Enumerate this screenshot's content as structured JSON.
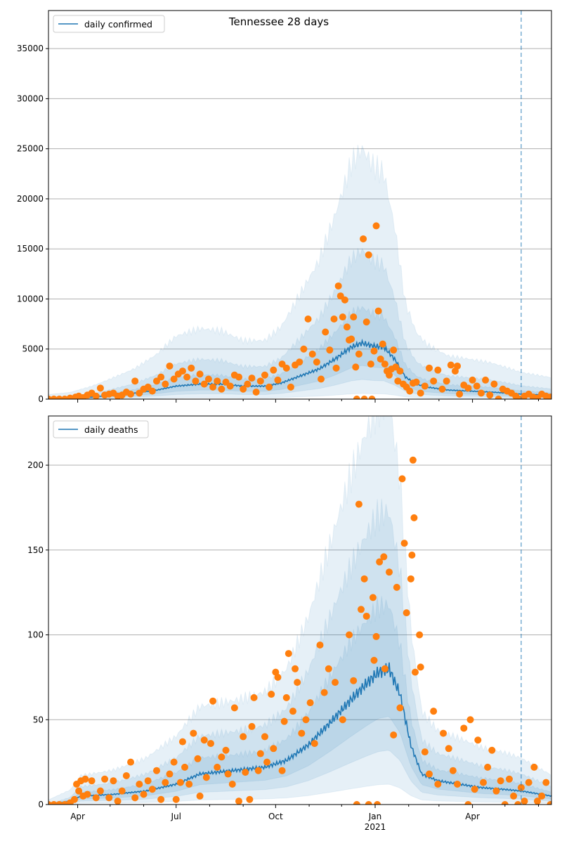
{
  "chart_data": [
    {
      "type": "line",
      "title": "Tennessee 28 days",
      "legend": {
        "label": "daily confirmed",
        "placement": "top-left"
      },
      "x_unit": "days since 2020-03-05",
      "xlim": [
        0,
        465
      ],
      "ylim": [
        0,
        38800
      ],
      "yticks": [
        0,
        5000,
        10000,
        15000,
        20000,
        25000,
        30000,
        35000
      ],
      "ytick_labels": [
        "0",
        "5000",
        "10000",
        "15000",
        "20000",
        "25000",
        "30000",
        "35000"
      ],
      "grid": "horizontal",
      "forecast_start_day": 437,
      "mean": [
        [
          0,
          0
        ],
        [
          20,
          50
        ],
        [
          40,
          200
        ],
        [
          60,
          400
        ],
        [
          80,
          600
        ],
        [
          100,
          900
        ],
        [
          118,
          1300
        ],
        [
          140,
          1500
        ],
        [
          160,
          1500
        ],
        [
          180,
          1300
        ],
        [
          200,
          1300
        ],
        [
          215,
          1600
        ],
        [
          230,
          2200
        ],
        [
          250,
          3000
        ],
        [
          265,
          4000
        ],
        [
          280,
          5200
        ],
        [
          290,
          5600
        ],
        [
          300,
          5300
        ],
        [
          310,
          5200
        ],
        [
          320,
          4000
        ],
        [
          330,
          2200
        ],
        [
          340,
          1500
        ],
        [
          350,
          1200
        ],
        [
          370,
          900
        ],
        [
          390,
          800
        ],
        [
          410,
          700
        ],
        [
          437,
          500
        ],
        [
          465,
          400
        ]
      ],
      "band_multipliers": {
        "outer": [
          0.1,
          4.3
        ],
        "middle": [
          0.35,
          2.6
        ],
        "inner": [
          0.6,
          1.6
        ]
      },
      "observed": [
        [
          0,
          0
        ],
        [
          5,
          0
        ],
        [
          10,
          0
        ],
        [
          15,
          0
        ],
        [
          20,
          100
        ],
        [
          25,
          200
        ],
        [
          28,
          300
        ],
        [
          32,
          150
        ],
        [
          36,
          400
        ],
        [
          40,
          600
        ],
        [
          44,
          300
        ],
        [
          48,
          1100
        ],
        [
          52,
          400
        ],
        [
          56,
          500
        ],
        [
          60,
          600
        ],
        [
          64,
          300
        ],
        [
          68,
          400
        ],
        [
          72,
          700
        ],
        [
          76,
          500
        ],
        [
          80,
          1800
        ],
        [
          84,
          600
        ],
        [
          88,
          1000
        ],
        [
          92,
          1200
        ],
        [
          96,
          800
        ],
        [
          100,
          1800
        ],
        [
          104,
          2200
        ],
        [
          108,
          1500
        ],
        [
          112,
          3300
        ],
        [
          116,
          2000
        ],
        [
          120,
          2500
        ],
        [
          124,
          2800
        ],
        [
          128,
          2200
        ],
        [
          132,
          3100
        ],
        [
          136,
          1800
        ],
        [
          140,
          2500
        ],
        [
          144,
          1500
        ],
        [
          148,
          2000
        ],
        [
          152,
          1200
        ],
        [
          156,
          1800
        ],
        [
          160,
          1000
        ],
        [
          164,
          1700
        ],
        [
          168,
          1300
        ],
        [
          172,
          2400
        ],
        [
          176,
          2200
        ],
        [
          180,
          1000
        ],
        [
          184,
          1500
        ],
        [
          188,
          2100
        ],
        [
          192,
          700
        ],
        [
          196,
          1800
        ],
        [
          200,
          2400
        ],
        [
          204,
          1200
        ],
        [
          208,
          2900
        ],
        [
          212,
          1900
        ],
        [
          216,
          3500
        ],
        [
          220,
          3100
        ],
        [
          224,
          1200
        ],
        [
          228,
          3400
        ],
        [
          232,
          3700
        ],
        [
          236,
          5000
        ],
        [
          240,
          8000
        ],
        [
          244,
          4500
        ],
        [
          248,
          3700
        ],
        [
          252,
          2000
        ],
        [
          256,
          6700
        ],
        [
          260,
          4900
        ],
        [
          264,
          8000
        ],
        [
          266,
          3100
        ],
        [
          268,
          11300
        ],
        [
          270,
          10300
        ],
        [
          272,
          8200
        ],
        [
          274,
          9900
        ],
        [
          276,
          7200
        ],
        [
          278,
          5900
        ],
        [
          280,
          6000
        ],
        [
          282,
          8200
        ],
        [
          284,
          3200
        ],
        [
          285,
          0
        ],
        [
          287,
          4500
        ],
        [
          291,
          16000
        ],
        [
          292,
          0
        ],
        [
          294,
          7700
        ],
        [
          296,
          14400
        ],
        [
          298,
          3500
        ],
        [
          299,
          0
        ],
        [
          301,
          4800
        ],
        [
          303,
          17300
        ],
        [
          305,
          8800
        ],
        [
          307,
          4000
        ],
        [
          309,
          5500
        ],
        [
          311,
          3500
        ],
        [
          313,
          2800
        ],
        [
          315,
          2400
        ],
        [
          317,
          3000
        ],
        [
          319,
          4900
        ],
        [
          321,
          3200
        ],
        [
          323,
          1800
        ],
        [
          325,
          2800
        ],
        [
          328,
          1500
        ],
        [
          331,
          1200
        ],
        [
          334,
          800
        ],
        [
          337,
          1600
        ],
        [
          340,
          1700
        ],
        [
          344,
          600
        ],
        [
          348,
          1300
        ],
        [
          352,
          3100
        ],
        [
          356,
          1800
        ],
        [
          360,
          2900
        ],
        [
          364,
          1000
        ],
        [
          368,
          1800
        ],
        [
          372,
          3400
        ],
        [
          376,
          2800
        ],
        [
          378,
          3300
        ],
        [
          380,
          500
        ],
        [
          384,
          1400
        ],
        [
          388,
          1100
        ],
        [
          392,
          1900
        ],
        [
          396,
          1300
        ],
        [
          400,
          600
        ],
        [
          404,
          1900
        ],
        [
          408,
          400
        ],
        [
          412,
          1500
        ],
        [
          416,
          0
        ],
        [
          420,
          1000
        ],
        [
          424,
          800
        ],
        [
          428,
          600
        ],
        [
          432,
          300
        ],
        [
          436,
          0
        ],
        [
          440,
          300
        ],
        [
          444,
          500
        ],
        [
          448,
          200
        ],
        [
          452,
          100
        ],
        [
          456,
          500
        ],
        [
          460,
          300
        ],
        [
          464,
          200
        ]
      ]
    },
    {
      "type": "line",
      "legend": {
        "label": "daily deaths",
        "placement": "top-left"
      },
      "x_unit": "days since 2020-03-05",
      "xlim": [
        0,
        465
      ],
      "ylim": [
        0,
        229
      ],
      "yticks": [
        0,
        50,
        100,
        150,
        200
      ],
      "ytick_labels": [
        "0",
        "50",
        "100",
        "150",
        "200"
      ],
      "xtick_days": [
        27,
        118,
        210,
        302,
        392
      ],
      "xtick_labels": [
        "Apr",
        "Jul",
        "Oct",
        "Jan\n2021",
        "Apr"
      ],
      "xtick_year_label": "2021",
      "minor_tick_days": [
        57,
        88,
        149,
        180,
        241,
        271,
        333,
        361,
        422,
        453
      ],
      "grid": "horizontal",
      "forecast_start_day": 437,
      "mean": [
        [
          0,
          0
        ],
        [
          20,
          2
        ],
        [
          30,
          5
        ],
        [
          60,
          6
        ],
        [
          90,
          8
        ],
        [
          118,
          12
        ],
        [
          140,
          18
        ],
        [
          170,
          20
        ],
        [
          200,
          22
        ],
        [
          220,
          26
        ],
        [
          240,
          35
        ],
        [
          260,
          48
        ],
        [
          280,
          62
        ],
        [
          295,
          72
        ],
        [
          305,
          78
        ],
        [
          315,
          80
        ],
        [
          325,
          65
        ],
        [
          335,
          35
        ],
        [
          345,
          18
        ],
        [
          360,
          14
        ],
        [
          380,
          12
        ],
        [
          400,
          10
        ],
        [
          420,
          9
        ],
        [
          437,
          8
        ],
        [
          465,
          5
        ]
      ],
      "band_multipliers": {
        "outer": [
          0.15,
          3.0
        ],
        "middle": [
          0.4,
          2.2
        ],
        "inner": [
          0.65,
          1.5
        ]
      },
      "observed": [
        [
          0,
          0
        ],
        [
          5,
          0
        ],
        [
          10,
          0
        ],
        [
          15,
          0
        ],
        [
          20,
          1
        ],
        [
          24,
          3
        ],
        [
          26,
          12
        ],
        [
          28,
          8
        ],
        [
          30,
          14
        ],
        [
          32,
          5
        ],
        [
          34,
          15
        ],
        [
          36,
          6
        ],
        [
          40,
          14
        ],
        [
          44,
          4
        ],
        [
          48,
          8
        ],
        [
          52,
          15
        ],
        [
          56,
          4
        ],
        [
          60,
          14
        ],
        [
          64,
          2
        ],
        [
          68,
          8
        ],
        [
          72,
          17
        ],
        [
          76,
          25
        ],
        [
          80,
          4
        ],
        [
          84,
          12
        ],
        [
          88,
          6
        ],
        [
          92,
          14
        ],
        [
          96,
          9
        ],
        [
          100,
          20
        ],
        [
          104,
          3
        ],
        [
          108,
          13
        ],
        [
          112,
          18
        ],
        [
          116,
          25
        ],
        [
          118,
          3
        ],
        [
          122,
          13
        ],
        [
          124,
          37
        ],
        [
          126,
          22
        ],
        [
          130,
          12
        ],
        [
          134,
          42
        ],
        [
          138,
          27
        ],
        [
          140,
          5
        ],
        [
          144,
          38
        ],
        [
          146,
          16
        ],
        [
          150,
          36
        ],
        [
          152,
          61
        ],
        [
          156,
          22
        ],
        [
          160,
          28
        ],
        [
          164,
          32
        ],
        [
          166,
          18
        ],
        [
          170,
          12
        ],
        [
          172,
          57
        ],
        [
          176,
          2
        ],
        [
          180,
          40
        ],
        [
          182,
          19
        ],
        [
          186,
          3
        ],
        [
          188,
          46
        ],
        [
          190,
          63
        ],
        [
          194,
          20
        ],
        [
          196,
          30
        ],
        [
          200,
          40
        ],
        [
          202,
          25
        ],
        [
          206,
          65
        ],
        [
          208,
          33
        ],
        [
          210,
          78
        ],
        [
          212,
          75
        ],
        [
          216,
          20
        ],
        [
          218,
          49
        ],
        [
          220,
          63
        ],
        [
          222,
          89
        ],
        [
          226,
          55
        ],
        [
          228,
          80
        ],
        [
          230,
          72
        ],
        [
          234,
          42
        ],
        [
          238,
          50
        ],
        [
          242,
          60
        ],
        [
          246,
          36
        ],
        [
          251,
          94
        ],
        [
          255,
          66
        ],
        [
          259,
          80
        ],
        [
          265,
          72
        ],
        [
          272,
          50
        ],
        [
          278,
          100
        ],
        [
          282,
          73
        ],
        [
          285,
          0
        ],
        [
          287,
          177
        ],
        [
          289,
          115
        ],
        [
          292,
          133
        ],
        [
          294,
          111
        ],
        [
          296,
          0
        ],
        [
          300,
          122
        ],
        [
          301,
          85
        ],
        [
          303,
          99
        ],
        [
          304,
          0
        ],
        [
          306,
          143
        ],
        [
          310,
          146
        ],
        [
          311,
          80
        ],
        [
          315,
          137
        ],
        [
          319,
          41
        ],
        [
          322,
          128
        ],
        [
          325,
          57
        ],
        [
          327,
          192
        ],
        [
          329,
          154
        ],
        [
          331,
          113
        ],
        [
          335,
          133
        ],
        [
          336,
          147
        ],
        [
          337,
          203
        ],
        [
          338,
          169
        ],
        [
          339,
          78
        ],
        [
          343,
          100
        ],
        [
          344,
          81
        ],
        [
          348,
          31
        ],
        [
          352,
          18
        ],
        [
          356,
          55
        ],
        [
          360,
          12
        ],
        [
          365,
          42
        ],
        [
          370,
          33
        ],
        [
          374,
          20
        ],
        [
          378,
          12
        ],
        [
          384,
          45
        ],
        [
          388,
          0
        ],
        [
          390,
          50
        ],
        [
          394,
          9
        ],
        [
          397,
          38
        ],
        [
          402,
          13
        ],
        [
          406,
          22
        ],
        [
          410,
          32
        ],
        [
          414,
          8
        ],
        [
          418,
          14
        ],
        [
          422,
          0
        ],
        [
          426,
          15
        ],
        [
          430,
          5
        ],
        [
          434,
          0
        ],
        [
          437,
          10
        ],
        [
          440,
          2
        ],
        [
          444,
          13
        ],
        [
          449,
          22
        ],
        [
          452,
          2
        ],
        [
          456,
          5
        ],
        [
          460,
          13
        ],
        [
          464,
          0
        ]
      ]
    }
  ],
  "colors": {
    "line": "#1f77b4",
    "band": "#1f77b4",
    "points": "#ff7f0e",
    "grid": "#b0b0b0",
    "forecast_line": "#1f77b4"
  }
}
